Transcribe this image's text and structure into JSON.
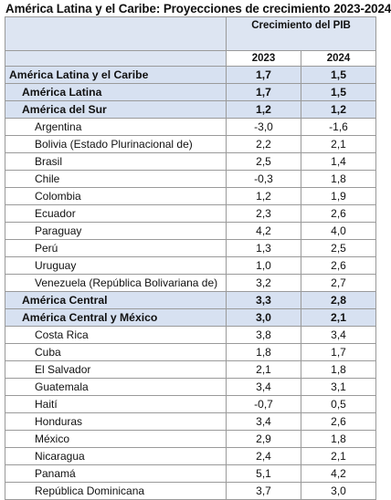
{
  "title": "América Latina y el Caribe: Proyecciones de crecimiento 2023-2024",
  "table": {
    "group_header": "Crecimiento del PIB",
    "years": [
      "2023",
      "2024"
    ],
    "rows": [
      {
        "name": "América Latina y el Caribe",
        "v2023": "1,7",
        "v2024": "1,5",
        "type": "group",
        "level": 0
      },
      {
        "name": "América Latina",
        "v2023": "1,7",
        "v2024": "1,5",
        "type": "group",
        "level": 1
      },
      {
        "name": "América del Sur",
        "v2023": "1,2",
        "v2024": "1,2",
        "type": "group",
        "level": 1
      },
      {
        "name": "Argentina",
        "v2023": "-3,0",
        "v2024": "-1,6",
        "type": "country",
        "level": 2
      },
      {
        "name": "Bolivia (Estado Plurinacional de)",
        "v2023": "2,2",
        "v2024": "2,1",
        "type": "country",
        "level": 2
      },
      {
        "name": "Brasil",
        "v2023": "2,5",
        "v2024": "1,4",
        "type": "country",
        "level": 2
      },
      {
        "name": "Chile",
        "v2023": "-0,3",
        "v2024": "1,8",
        "type": "country",
        "level": 2
      },
      {
        "name": "Colombia",
        "v2023": "1,2",
        "v2024": "1,9",
        "type": "country",
        "level": 2
      },
      {
        "name": "Ecuador",
        "v2023": "2,3",
        "v2024": "2,6",
        "type": "country",
        "level": 2
      },
      {
        "name": "Paraguay",
        "v2023": "4,2",
        "v2024": "4,0",
        "type": "country",
        "level": 2
      },
      {
        "name": "Perú",
        "v2023": "1,3",
        "v2024": "2,5",
        "type": "country",
        "level": 2
      },
      {
        "name": "Uruguay",
        "v2023": "1,0",
        "v2024": "2,6",
        "type": "country",
        "level": 2
      },
      {
        "name": "Venezuela (República Bolivariana de)",
        "v2023": "3,2",
        "v2024": "2,7",
        "type": "country",
        "level": 2
      },
      {
        "name": "América Central",
        "v2023": "3,3",
        "v2024": "2,8",
        "type": "group",
        "level": 1
      },
      {
        "name": "América Central y México",
        "v2023": "3,0",
        "v2024": "2,1",
        "type": "group",
        "level": 1
      },
      {
        "name": "Costa Rica",
        "v2023": "3,8",
        "v2024": "3,4",
        "type": "country",
        "level": 2
      },
      {
        "name": "Cuba",
        "v2023": "1,8",
        "v2024": "1,7",
        "type": "country",
        "level": 2
      },
      {
        "name": "El Salvador",
        "v2023": "2,1",
        "v2024": "1,8",
        "type": "country",
        "level": 2
      },
      {
        "name": "Guatemala",
        "v2023": "3,4",
        "v2024": "3,1",
        "type": "country",
        "level": 2
      },
      {
        "name": "Haití",
        "v2023": "-0,7",
        "v2024": "0,5",
        "type": "country",
        "level": 2
      },
      {
        "name": "Honduras",
        "v2023": "3,4",
        "v2024": "2,6",
        "type": "country",
        "level": 2
      },
      {
        "name": "México",
        "v2023": "2,9",
        "v2024": "1,8",
        "type": "country",
        "level": 2
      },
      {
        "name": "Nicaragua",
        "v2023": "2,4",
        "v2024": "2,1",
        "type": "country",
        "level": 2
      },
      {
        "name": "Panamá",
        "v2023": "5,1",
        "v2024": "4,2",
        "type": "country",
        "level": 2
      },
      {
        "name": "República Dominicana",
        "v2023": "3,7",
        "v2024": "3,0",
        "type": "country",
        "level": 2
      }
    ]
  }
}
